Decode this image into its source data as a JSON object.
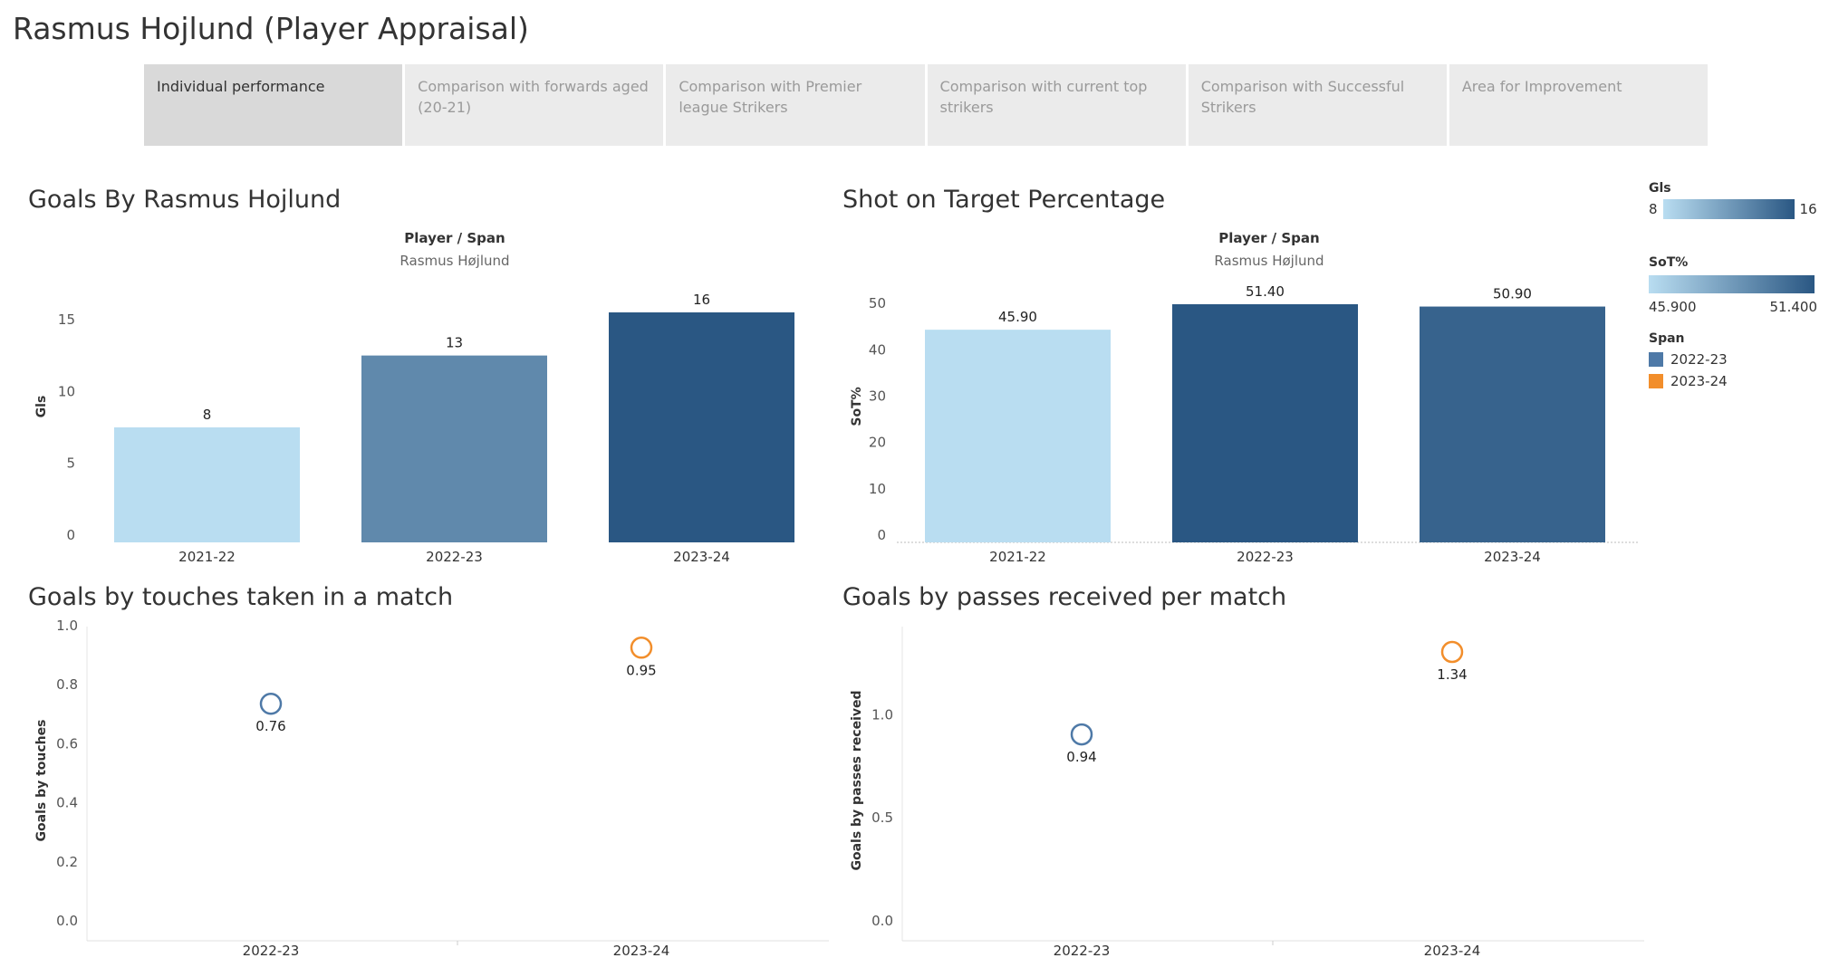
{
  "page_title": "Rasmus Hojlund (Player Appraisal)",
  "tabs": [
    {
      "label": "Individual performance",
      "active": true
    },
    {
      "label": "Comparison with forwards aged (20-21)",
      "active": false
    },
    {
      "label": "Comparison with Premier league Strikers",
      "active": false
    },
    {
      "label": "Comparison with current top strikers",
      "active": false
    },
    {
      "label": "Comparison with  Successful Strikers",
      "active": false
    },
    {
      "label": "Area for Improvement",
      "active": false
    }
  ],
  "charts": {
    "goals": {
      "title": "Goals By Rasmus Hojlund",
      "header": "Player  /  Span",
      "subheader": "Rasmus Højlund"
    },
    "sot": {
      "title": "Shot on Target Percentage",
      "header": "Player  /  Span",
      "subheader": "Rasmus Højlund"
    },
    "touches": {
      "title": "Goals by touches taken in a match"
    },
    "passes": {
      "title": "Goals by passes received per match"
    }
  },
  "legend": {
    "gls": {
      "title": "Gls",
      "min": "8",
      "max": "16"
    },
    "sot": {
      "title": "SoT%",
      "min": "45.900",
      "max": "51.400"
    },
    "span": {
      "title": "Span",
      "items": [
        {
          "label": "2022-23",
          "color": "#4e79a7"
        },
        {
          "label": "2023-24",
          "color": "#f28e2b"
        }
      ]
    }
  },
  "colors": {
    "light": "#b9ddf1",
    "dark": "#2a5783",
    "blue": "#4e79a7",
    "orange": "#f28e2b"
  },
  "chart_data": [
    {
      "id": "goals",
      "type": "bar",
      "title": "Goals By Rasmus Hojlund",
      "ylabel": "Gls",
      "categories": [
        "2021-22",
        "2022-23",
        "2023-24"
      ],
      "values": [
        8,
        13,
        16
      ],
      "labels": [
        "8",
        "13",
        "16"
      ],
      "ylim": [
        0,
        16
      ],
      "yticks": [
        0,
        5,
        10,
        15
      ],
      "color_range": [
        8,
        16
      ]
    },
    {
      "id": "sot",
      "type": "bar",
      "title": "Shot on Target Percentage",
      "ylabel": "SoT%",
      "categories": [
        "2021-22",
        "2022-23",
        "2023-24"
      ],
      "values": [
        45.9,
        51.4,
        50.9
      ],
      "labels": [
        "45.90",
        "51.40",
        "50.90"
      ],
      "ylim": [
        0,
        51.4
      ],
      "yticks": [
        0,
        10,
        20,
        30,
        40,
        50
      ],
      "color_range": [
        45.9,
        51.4
      ]
    },
    {
      "id": "touches",
      "type": "scatter",
      "title": "Goals by touches taken in a match",
      "ylabel": "Goals by touches",
      "categories": [
        "2022-23",
        "2023-24"
      ],
      "values": [
        0.76,
        0.95
      ],
      "labels": [
        "0.76",
        "0.95"
      ],
      "ylim": [
        0,
        1.0
      ],
      "yticks": [
        0.0,
        0.2,
        0.4,
        0.6,
        0.8,
        1.0
      ],
      "ytick_labels": [
        "0.0",
        "0.2",
        "0.4",
        "0.6",
        "0.8",
        "1.0"
      ]
    },
    {
      "id": "passes",
      "type": "scatter",
      "title": "Goals by passes received per match",
      "ylabel": "Goals by passes received",
      "categories": [
        "2022-23",
        "2023-24"
      ],
      "values": [
        0.94,
        1.34
      ],
      "labels": [
        "0.94",
        "1.34"
      ],
      "ylim": [
        0,
        1.45
      ],
      "yticks": [
        0.0,
        0.5,
        1.0
      ],
      "ytick_labels": [
        "0.0",
        "0.5",
        "1.0"
      ]
    }
  ]
}
